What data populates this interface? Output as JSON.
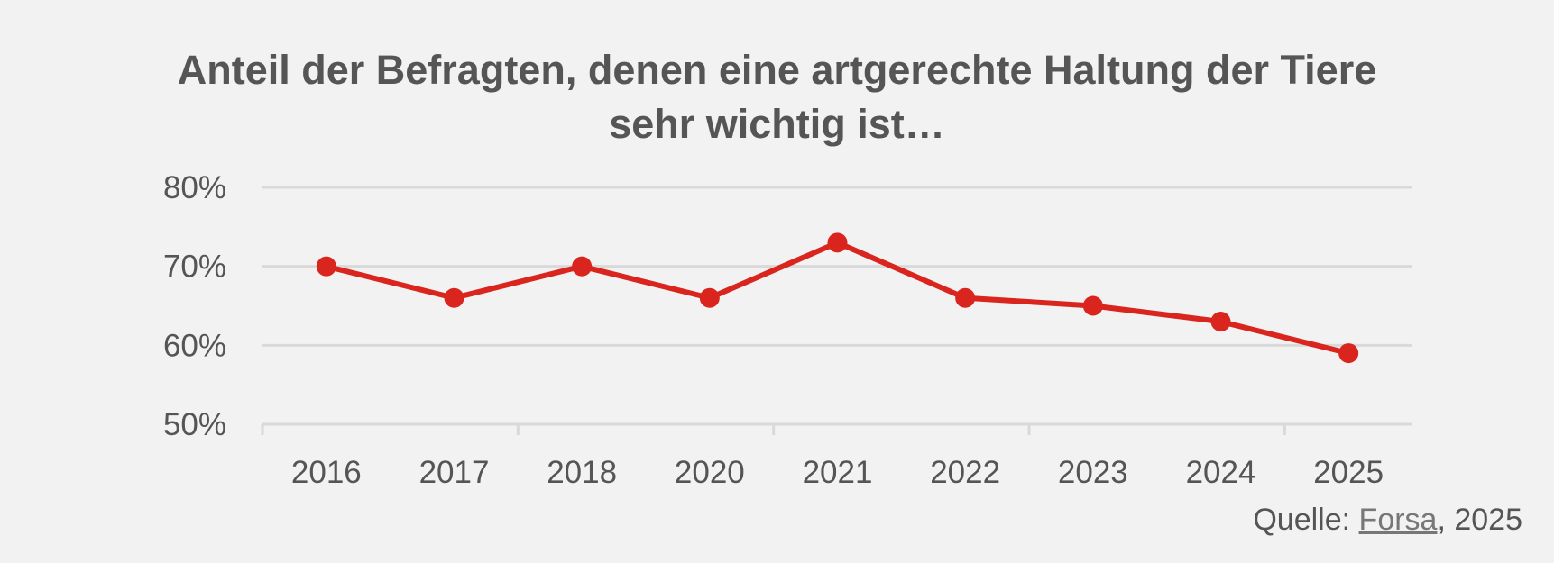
{
  "title_lines": [
    "Anteil der Befragten, denen eine artgerechte Haltung der Tiere",
    "sehr wichtig ist…"
  ],
  "source": {
    "prefix": "Quelle: ",
    "link": "Forsa",
    "suffix": ", 2025"
  },
  "colors": {
    "line": "#d9251d",
    "grid": "#d9d9d9",
    "text": "#555555",
    "background": "#f2f2f2"
  },
  "chart_data": {
    "type": "line",
    "title": "Anteil der Befragten, denen eine artgerechte Haltung der Tiere sehr wichtig ist…",
    "xlabel": "",
    "ylabel": "",
    "categories": [
      "2016",
      "2017",
      "2018",
      "2020",
      "2021",
      "2022",
      "2023",
      "2024",
      "2025"
    ],
    "series": [
      {
        "name": "sehr wichtig",
        "values": [
          70,
          66,
          70,
          66,
          73,
          66,
          65,
          63,
          59
        ]
      }
    ],
    "ylim": [
      50,
      80
    ],
    "yticks": [
      50,
      60,
      70,
      80
    ],
    "ytick_labels": [
      "50%",
      "60%",
      "70%",
      "80%"
    ],
    "grid": true,
    "legend": "none"
  }
}
